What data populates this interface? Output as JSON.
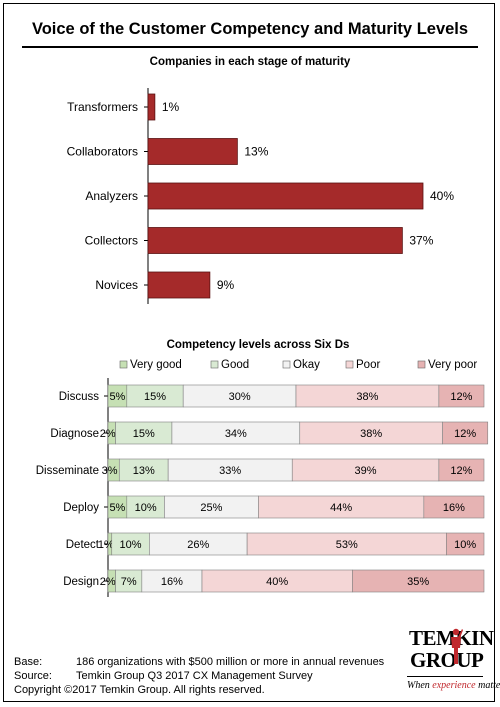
{
  "title": "Voice of the Customer Competency and Maturity Levels",
  "chart_data": [
    {
      "type": "bar",
      "orientation": "horizontal",
      "title": "Companies in each stage of maturity",
      "categories": [
        "Transformers",
        "Collaborators",
        "Analyzers",
        "Collectors",
        "Novices"
      ],
      "values": [
        1,
        13,
        40,
        37,
        9
      ],
      "value_labels": [
        "1%",
        "13%",
        "40%",
        "37%",
        "9%"
      ],
      "color": "#a52a2a",
      "xlim": [
        0,
        50
      ],
      "grid": false
    },
    {
      "type": "bar",
      "orientation": "horizontal",
      "stacked": true,
      "title": "Competency levels across Six Ds",
      "categories": [
        "Discuss",
        "Diagnose",
        "Disseminate",
        "Deploy",
        "Detect",
        "Design"
      ],
      "legend": {
        "placement": "top"
      },
      "series": [
        {
          "name": "Very good",
          "color": "#c6e0b4",
          "values": [
            5,
            2,
            3,
            5,
            1,
            2
          ],
          "labels": [
            "5%",
            "2%",
            "3%",
            "5%",
            "1%",
            "2%"
          ]
        },
        {
          "name": "Good",
          "color": "#d9ead3",
          "values": [
            15,
            15,
            13,
            10,
            10,
            7
          ],
          "labels": [
            "15%",
            "15%",
            "13%",
            "10%",
            "10%",
            "7%"
          ]
        },
        {
          "name": "Okay",
          "color": "#f2f2f2",
          "values": [
            30,
            34,
            33,
            25,
            26,
            16
          ],
          "labels": [
            "30%",
            "34%",
            "33%",
            "25%",
            "26%",
            "16%"
          ]
        },
        {
          "name": "Poor",
          "color": "#f4d6d6",
          "values": [
            38,
            38,
            39,
            44,
            53,
            40
          ],
          "labels": [
            "38%",
            "38%",
            "39%",
            "44%",
            "53%",
            "40%"
          ]
        },
        {
          "name": "Very poor",
          "color": "#e6b3b3",
          "values": [
            12,
            12,
            12,
            16,
            10,
            35
          ],
          "labels": [
            "12%",
            "12%",
            "12%",
            "16%",
            "10%",
            "35%"
          ]
        }
      ],
      "xlim": [
        0,
        100
      ],
      "grid": false
    }
  ],
  "footer": {
    "base_label": "Base:",
    "base_text": "186 organizations with $500 million or more in annual revenues",
    "source_label": "Source:",
    "source_text": "Temkin Group Q3 2017 CX Management Survey",
    "copyright": "Copyright ©2017 Temkin Group. All rights reserved."
  },
  "logo": {
    "line1": "TEMKIN",
    "line2": "GROUP",
    "tag_prefix": "When ",
    "tag_highlight": "experience",
    "tag_suffix": " matters"
  }
}
